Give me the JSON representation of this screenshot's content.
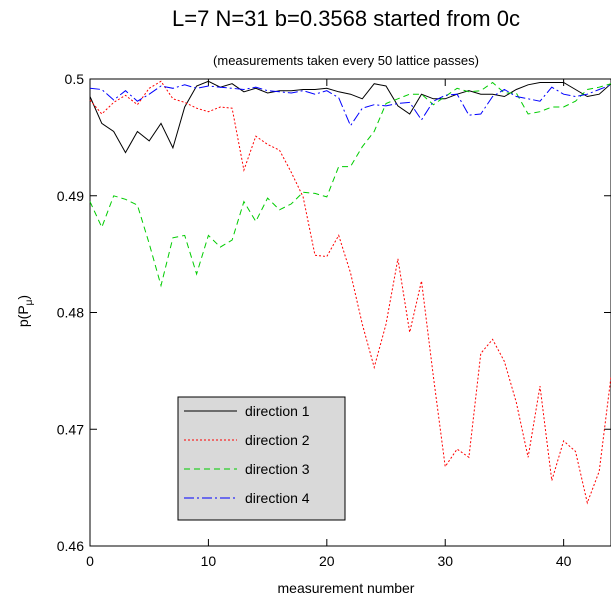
{
  "chart_data": {
    "type": "line",
    "title": "L=7 N=31 b=0.3568 started from 0c",
    "subtitle": "(measurements taken every 50 lattice passes)",
    "xlabel": "measurement number",
    "ylabel_main": "p(P",
    "ylabel_sub": "μ",
    "ylabel_close": ")",
    "xlim": [
      0,
      44
    ],
    "ylim": [
      0.46,
      0.5
    ],
    "xticks": [
      0,
      10,
      20,
      30,
      40
    ],
    "xtick_labels": [
      "0",
      "10",
      "20",
      "30",
      "40"
    ],
    "yticks": [
      0.46,
      0.47,
      0.48,
      0.49,
      0.5
    ],
    "ytick_labels": [
      "0.46",
      "0.47",
      "0.48",
      "0.49",
      "0.5"
    ],
    "grid": false,
    "legend_position": "bottom-left",
    "series": [
      {
        "name": "direction 1",
        "color": "#000000",
        "dash": "",
        "x": [
          0,
          1,
          2,
          3,
          4,
          5,
          6,
          7,
          8,
          9,
          10,
          11,
          12,
          13,
          14,
          15,
          16,
          17,
          18,
          19,
          20,
          21,
          22,
          23,
          24,
          25,
          26,
          27,
          28,
          29,
          30,
          31,
          32,
          33,
          34,
          35,
          36,
          37,
          38,
          39,
          40,
          41,
          42,
          43,
          44
        ],
        "y": [
          0.4985,
          0.4962,
          0.4955,
          0.4937,
          0.4955,
          0.4947,
          0.4962,
          0.4941,
          0.4976,
          0.4994,
          0.4998,
          0.4993,
          0.4996,
          0.4989,
          0.4992,
          0.4988,
          0.499,
          0.499,
          0.4991,
          0.4991,
          0.4992,
          0.4989,
          0.4987,
          0.4983,
          0.4996,
          0.4994,
          0.4977,
          0.497,
          0.4987,
          0.4983,
          0.4983,
          0.4987,
          0.499,
          0.4987,
          0.4987,
          0.4985,
          0.4991,
          0.4995,
          0.4997,
          0.4997,
          0.4997,
          0.4991,
          0.4985,
          0.4987,
          0.4996
        ]
      },
      {
        "name": "direction 2",
        "color": "#ff0000",
        "dash": "2,2",
        "x": [
          0,
          1,
          2,
          3,
          4,
          5,
          6,
          7,
          8,
          9,
          10,
          11,
          12,
          13,
          14,
          15,
          16,
          17,
          18,
          19,
          20,
          21,
          22,
          23,
          24,
          25,
          26,
          27,
          28,
          29,
          30,
          31,
          32,
          33,
          34,
          35,
          36,
          37,
          38,
          39,
          40,
          41,
          42,
          43,
          44
        ],
        "y": [
          0.4982,
          0.497,
          0.498,
          0.4986,
          0.4978,
          0.4992,
          0.4998,
          0.4983,
          0.498,
          0.4975,
          0.4972,
          0.4976,
          0.4975,
          0.4922,
          0.4951,
          0.4944,
          0.4939,
          0.492,
          0.4899,
          0.4849,
          0.4848,
          0.4866,
          0.4834,
          0.479,
          0.4753,
          0.479,
          0.4846,
          0.4783,
          0.4827,
          0.4745,
          0.4668,
          0.4683,
          0.4676,
          0.4765,
          0.4777,
          0.4758,
          0.4723,
          0.4676,
          0.4737,
          0.4656,
          0.469,
          0.4681,
          0.4637,
          0.4664,
          0.4745
        ]
      },
      {
        "name": "direction 3",
        "color": "#00cc00",
        "dash": "6,4",
        "x": [
          0,
          1,
          2,
          3,
          4,
          5,
          6,
          7,
          8,
          9,
          10,
          11,
          12,
          13,
          14,
          15,
          16,
          17,
          18,
          19,
          20,
          21,
          22,
          23,
          24,
          25,
          26,
          27,
          28,
          29,
          30,
          31,
          32,
          33,
          34,
          35,
          36,
          37,
          38,
          39,
          40,
          41,
          42,
          43,
          44
        ],
        "y": [
          0.4895,
          0.4873,
          0.49,
          0.4897,
          0.4892,
          0.4859,
          0.4823,
          0.4864,
          0.4866,
          0.4833,
          0.4866,
          0.4856,
          0.4862,
          0.4895,
          0.4878,
          0.4898,
          0.4888,
          0.4893,
          0.4903,
          0.4902,
          0.4899,
          0.4925,
          0.4925,
          0.4942,
          0.4955,
          0.4979,
          0.4983,
          0.4987,
          0.4987,
          0.4978,
          0.4985,
          0.4992,
          0.4989,
          0.499,
          0.4997,
          0.4988,
          0.4988,
          0.497,
          0.4972,
          0.4976,
          0.4976,
          0.4981,
          0.4991,
          0.4993,
          0.4996
        ]
      },
      {
        "name": "direction 4",
        "color": "#0000ff",
        "dash": "10,3,2,3",
        "x": [
          0,
          1,
          2,
          3,
          4,
          5,
          6,
          7,
          8,
          9,
          10,
          11,
          12,
          13,
          14,
          15,
          16,
          17,
          18,
          19,
          20,
          21,
          22,
          23,
          24,
          25,
          26,
          27,
          28,
          29,
          30,
          31,
          32,
          33,
          34,
          35,
          36,
          37,
          38,
          39,
          40,
          41,
          42,
          43,
          44
        ],
        "y": [
          0.4992,
          0.4991,
          0.4982,
          0.499,
          0.4981,
          0.4987,
          0.4994,
          0.4992,
          0.4995,
          0.4992,
          0.4994,
          0.4993,
          0.4992,
          0.4991,
          0.4993,
          0.499,
          0.4989,
          0.4988,
          0.499,
          0.4987,
          0.499,
          0.4984,
          0.496,
          0.4975,
          0.4978,
          0.4977,
          0.4979,
          0.498,
          0.4965,
          0.4981,
          0.4986,
          0.4987,
          0.4969,
          0.497,
          0.4985,
          0.4991,
          0.4985,
          0.4983,
          0.4981,
          0.4993,
          0.4987,
          0.4985,
          0.4987,
          0.4991,
          0.4995
        ]
      }
    ]
  }
}
